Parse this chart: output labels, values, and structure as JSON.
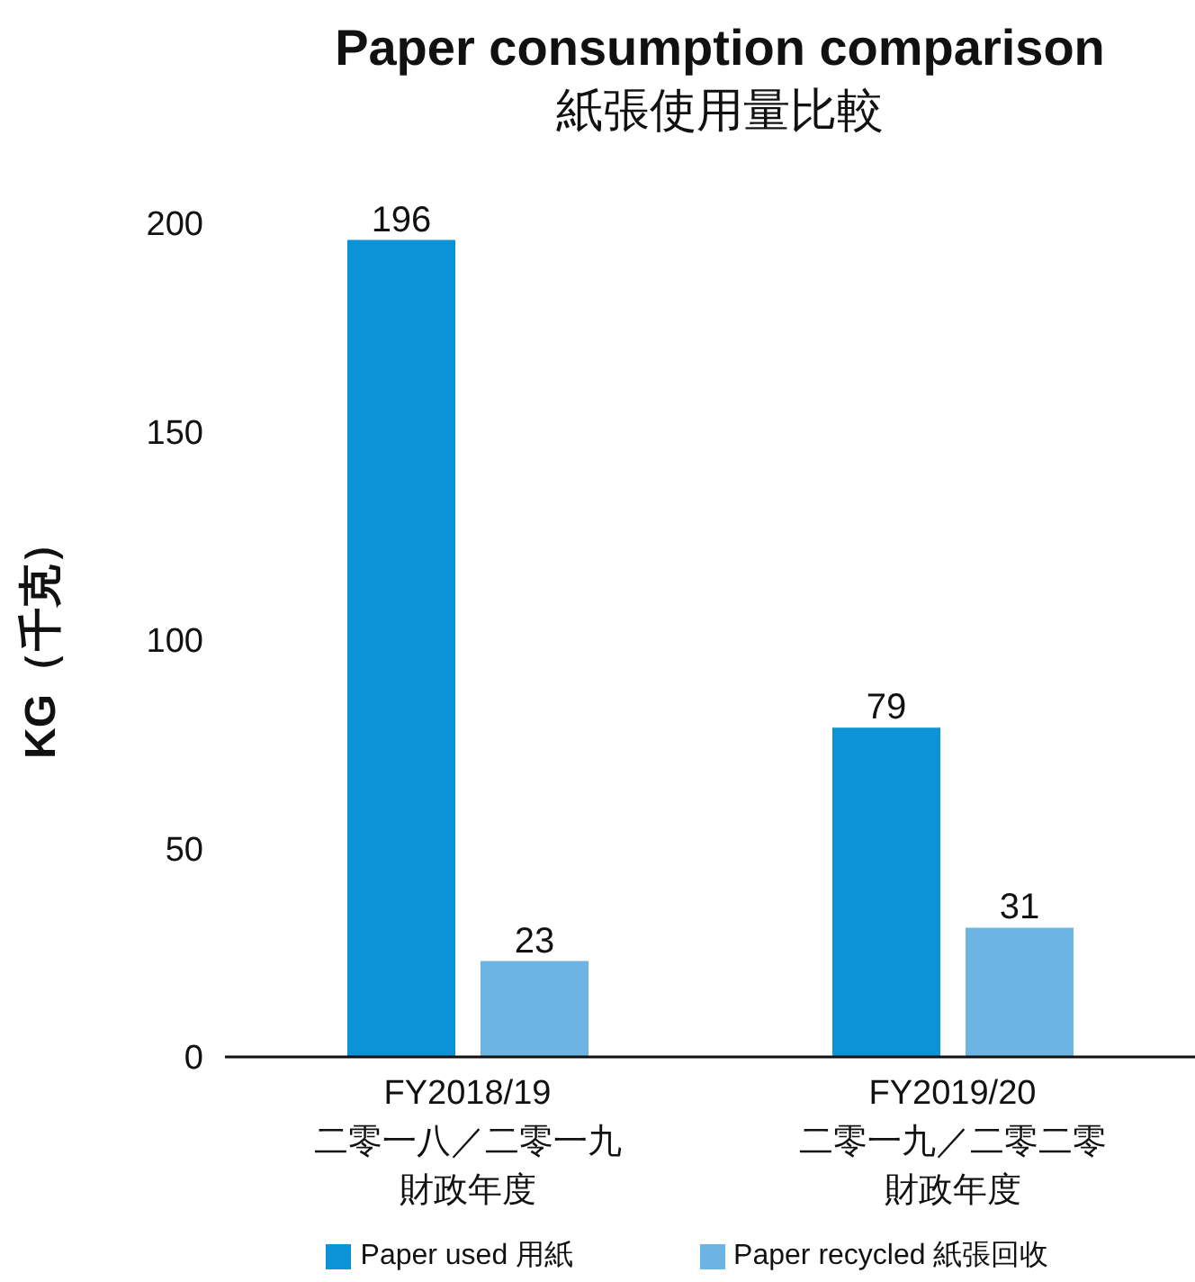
{
  "chart_data": {
    "type": "bar",
    "title": "Paper consumption comparison",
    "subtitle": "紙張使用量比較",
    "ylabel": "KG（千克）",
    "categories": [
      "FY2018/19\n二零一八／二零一九財政年度",
      "FY2019/20\n二零一九／二零二零財政年度"
    ],
    "series": [
      {
        "name": "Paper used 用紙",
        "color": "#0a93d6",
        "values": [
          196,
          79
        ]
      },
      {
        "name": "Paper recycled 紙張回收",
        "color": "#6cb4e4",
        "values": [
          23,
          31
        ]
      }
    ],
    "ylim": [
      0,
      200
    ],
    "yticks": [
      0,
      50,
      100,
      150,
      200
    ],
    "legend": "bottom",
    "data_labels": true
  }
}
